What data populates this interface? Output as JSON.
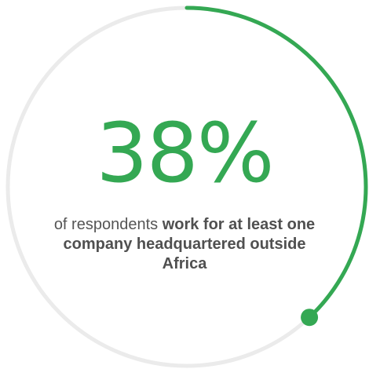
{
  "colors": {
    "accent": "#34a853",
    "track": "#ebebeb",
    "text": "#555555"
  },
  "chart_data": {
    "type": "pie",
    "variant": "donut-progress",
    "values": [
      38
    ],
    "max": 100,
    "value_label": "38%",
    "caption_plain": "of respondents ",
    "caption_bold": "work for at least one company headquartered outside Africa"
  }
}
